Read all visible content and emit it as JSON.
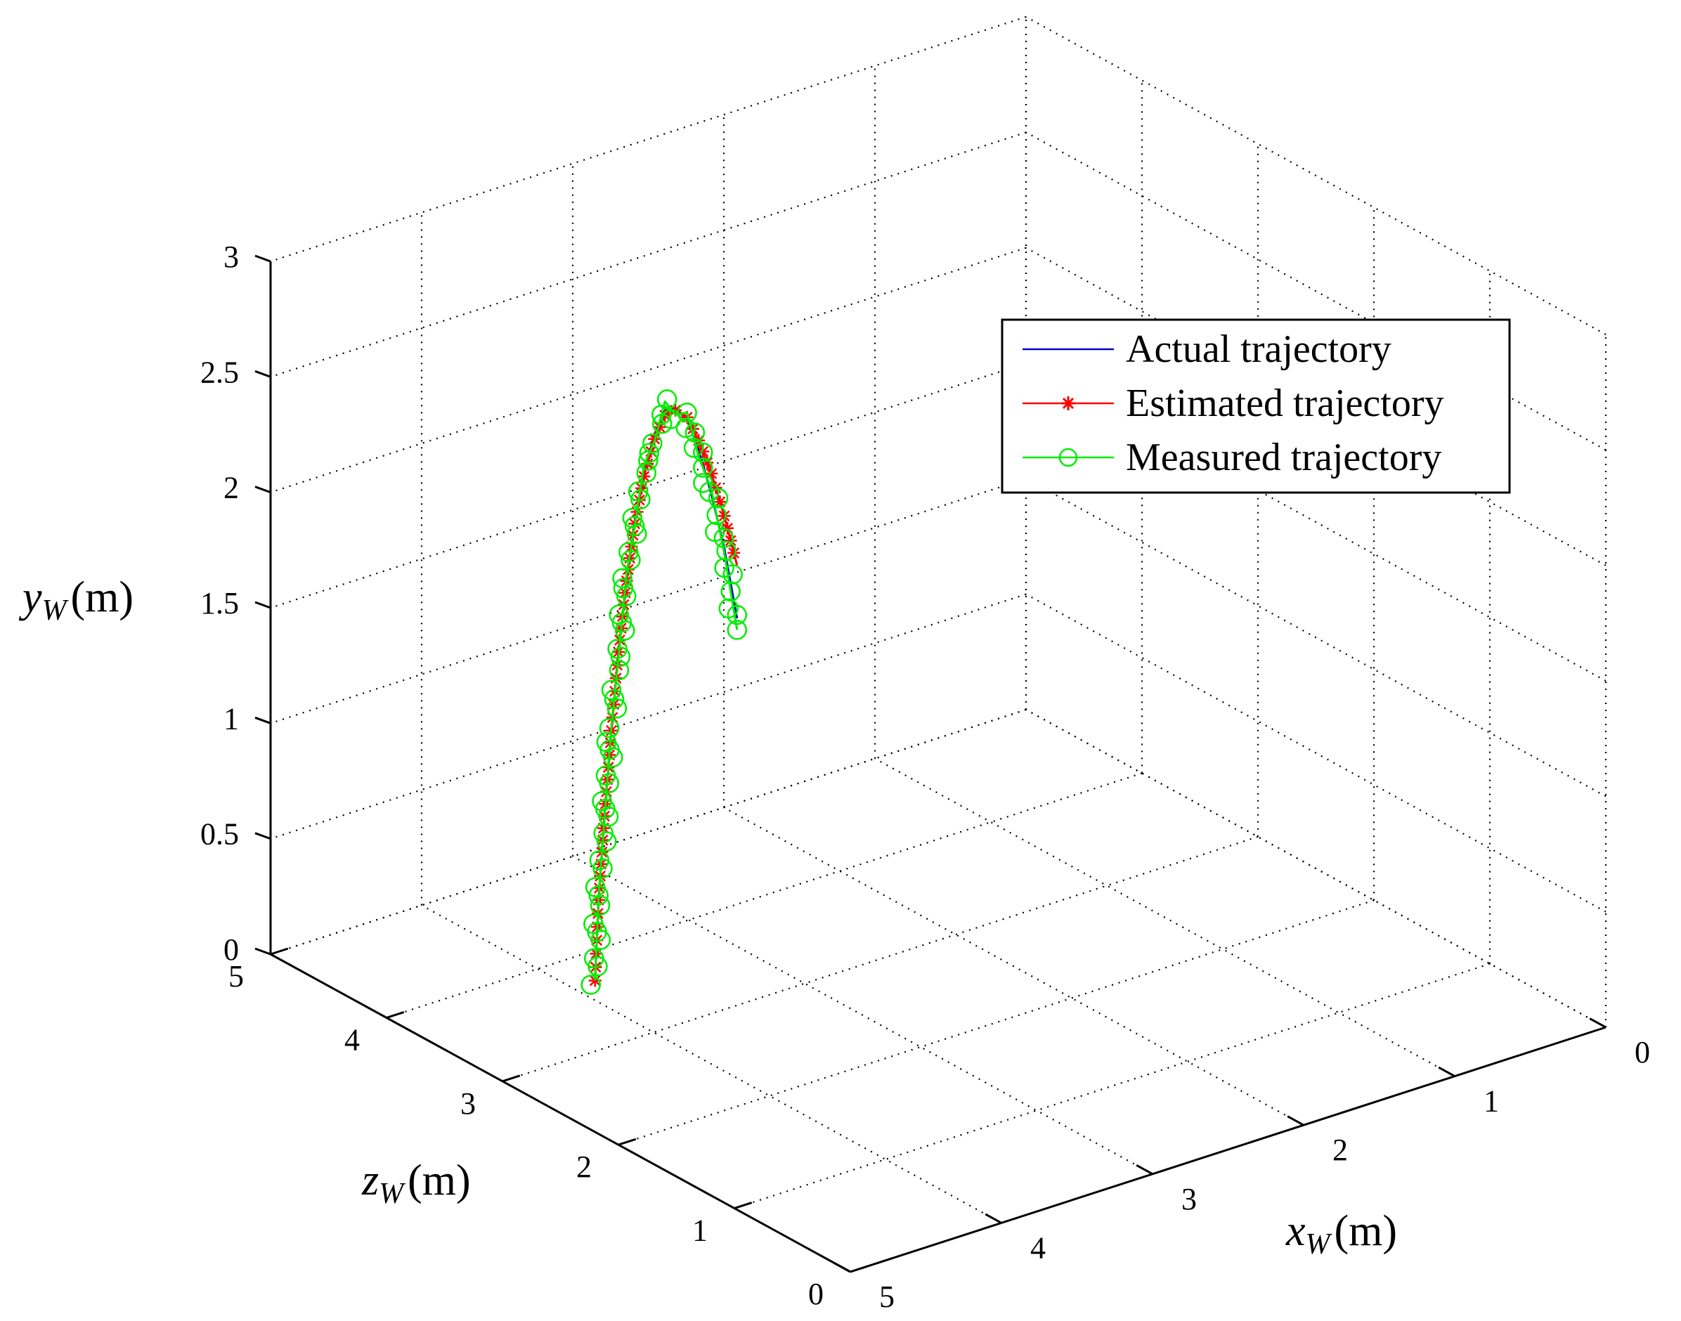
{
  "chart_data": {
    "type": "line3d",
    "title": "",
    "xlabel": {
      "var": "x",
      "sub": "W",
      "unit": "(m)"
    },
    "ylabel": {
      "var": "y",
      "sub": "W",
      "unit": "(m)"
    },
    "zlabel": {
      "var": "z",
      "sub": "W",
      "unit": "(m)"
    },
    "xlim": [
      0,
      5
    ],
    "ylim": [
      0,
      3
    ],
    "zlim": [
      0,
      5
    ],
    "x_ticks": [
      "0",
      "1",
      "2",
      "3",
      "4",
      "5"
    ],
    "y_ticks": [
      "0",
      "0.5",
      "1",
      "1.5",
      "2",
      "2.5",
      "3"
    ],
    "z_ticks": [
      "0",
      "1",
      "2",
      "3",
      "4",
      "5"
    ],
    "grid": true,
    "legend_position": "top-right",
    "series": [
      {
        "name": "Actual trajectory",
        "color": "#0000cc",
        "marker": "none",
        "points": [
          [
            3.85,
            3.7,
            0.0
          ],
          [
            3.75,
            3.8,
            0.3
          ],
          [
            3.65,
            3.88,
            0.62
          ],
          [
            3.55,
            3.95,
            0.95
          ],
          [
            3.45,
            4.02,
            1.25
          ],
          [
            3.35,
            4.08,
            1.52
          ],
          [
            3.25,
            4.14,
            1.74
          ],
          [
            3.15,
            4.19,
            1.92
          ],
          [
            3.05,
            4.23,
            2.05
          ],
          [
            2.95,
            4.27,
            2.12
          ],
          [
            2.85,
            4.31,
            2.1
          ],
          [
            2.75,
            4.34,
            2.02
          ],
          [
            2.65,
            4.37,
            1.86
          ],
          [
            2.55,
            4.39,
            1.64
          ],
          [
            2.45,
            4.41,
            1.38
          ],
          [
            2.35,
            4.43,
            1.05
          ]
        ]
      },
      {
        "name": "Estimated trajectory",
        "color": "#ff0000",
        "marker": "asterisk",
        "points": [
          [
            3.85,
            3.7,
            0.0
          ],
          [
            3.75,
            3.8,
            0.3
          ],
          [
            3.65,
            3.88,
            0.62
          ],
          [
            3.55,
            3.95,
            0.95
          ],
          [
            3.45,
            4.02,
            1.25
          ],
          [
            3.35,
            4.08,
            1.52
          ],
          [
            3.25,
            4.14,
            1.73
          ],
          [
            3.15,
            4.19,
            1.9
          ],
          [
            3.05,
            4.23,
            2.03
          ],
          [
            2.95,
            4.27,
            2.1
          ],
          [
            2.85,
            4.31,
            2.09
          ],
          [
            2.75,
            4.34,
            2.03
          ],
          [
            2.65,
            4.37,
            1.9
          ],
          [
            2.55,
            4.39,
            1.73
          ],
          [
            2.45,
            4.41,
            1.52
          ],
          [
            2.35,
            4.43,
            1.28
          ]
        ]
      },
      {
        "name": "Measured trajectory",
        "color": "#00ee00",
        "marker": "circle",
        "points": [
          [
            3.85,
            3.7,
            0.0
          ],
          [
            3.75,
            3.8,
            0.32
          ],
          [
            3.65,
            3.88,
            0.6
          ],
          [
            3.55,
            3.95,
            0.97
          ],
          [
            3.45,
            4.02,
            1.22
          ],
          [
            3.35,
            4.08,
            1.55
          ],
          [
            3.25,
            4.14,
            1.72
          ],
          [
            3.15,
            4.19,
            1.95
          ],
          [
            3.05,
            4.23,
            2.02
          ],
          [
            2.95,
            4.27,
            2.16
          ],
          [
            2.85,
            4.31,
            2.07
          ],
          [
            2.75,
            4.34,
            2.05
          ],
          [
            2.65,
            4.37,
            1.83
          ],
          [
            2.55,
            4.39,
            1.66
          ],
          [
            2.45,
            4.41,
            1.36
          ],
          [
            2.35,
            4.43,
            1.0
          ]
        ]
      }
    ]
  }
}
